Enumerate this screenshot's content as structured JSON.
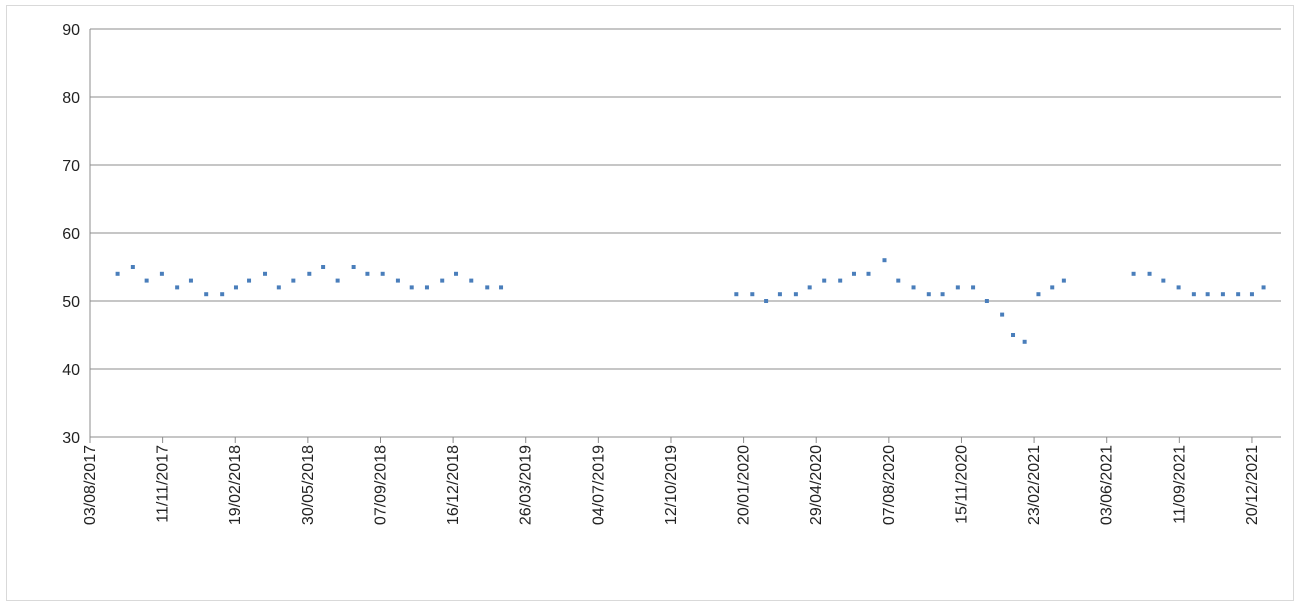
{
  "chart_data": {
    "type": "scatter",
    "title": "",
    "xlabel": "",
    "ylabel": "",
    "ylim": [
      30,
      90
    ],
    "yticks": [
      30,
      40,
      50,
      60,
      70,
      80,
      90
    ],
    "xlim": [
      "2017-08-03",
      "2022-01-29"
    ],
    "xticks": [
      "03/08/2017",
      "11/11/2017",
      "19/02/2018",
      "30/05/2018",
      "07/09/2018",
      "16/12/2018",
      "26/03/2019",
      "04/07/2019",
      "12/10/2019",
      "20/01/2020",
      "29/04/2020",
      "07/08/2020",
      "15/11/2020",
      "23/02/2021",
      "03/06/2021",
      "11/09/2021",
      "20/12/2021"
    ],
    "grid": "horizontal",
    "legend": "none",
    "marker_color": "#4a7ebb",
    "series": [
      {
        "x": [
          "2017-09-10",
          "2017-10-01",
          "2017-10-20",
          "2017-11-10",
          "2017-12-01",
          "2017-12-20",
          "2018-01-10",
          "2018-02-01",
          "2018-02-20",
          "2018-03-10",
          "2018-04-01",
          "2018-04-20",
          "2018-05-10",
          "2018-06-01",
          "2018-06-20",
          "2018-07-10",
          "2018-08-01",
          "2018-08-20",
          "2018-09-10",
          "2018-10-01",
          "2018-10-20",
          "2018-11-10",
          "2018-12-01",
          "2018-12-20",
          "2019-01-10",
          "2019-02-01",
          "2019-02-20",
          "2020-01-10",
          "2020-02-01",
          "2020-02-20",
          "2020-03-10",
          "2020-04-01",
          "2020-04-20",
          "2020-05-10",
          "2020-06-01",
          "2020-06-20",
          "2020-07-10",
          "2020-08-01",
          "2020-08-20",
          "2020-09-10",
          "2020-10-01",
          "2020-10-20",
          "2020-11-10",
          "2020-12-01",
          "2020-12-20",
          "2021-01-10",
          "2021-01-25",
          "2021-02-10",
          "2021-03-01",
          "2021-03-20",
          "2021-04-05",
          "2021-07-10",
          "2021-08-01",
          "2021-08-20",
          "2021-09-10",
          "2021-10-01",
          "2021-10-20",
          "2021-11-10",
          "2021-12-01",
          "2021-12-20",
          "2022-01-05"
        ],
        "y": [
          54,
          55,
          53,
          54,
          52,
          53,
          51,
          51,
          52,
          53,
          54,
          52,
          53,
          54,
          55,
          53,
          55,
          54,
          54,
          53,
          52,
          52,
          53,
          54,
          53,
          52,
          52,
          51,
          51,
          50,
          51,
          51,
          52,
          53,
          53,
          54,
          54,
          56,
          53,
          52,
          51,
          51,
          52,
          52,
          50,
          48,
          45,
          44,
          51,
          52,
          53,
          54,
          54,
          53,
          52,
          51,
          51,
          51,
          51,
          51,
          52
        ]
      }
    ]
  }
}
